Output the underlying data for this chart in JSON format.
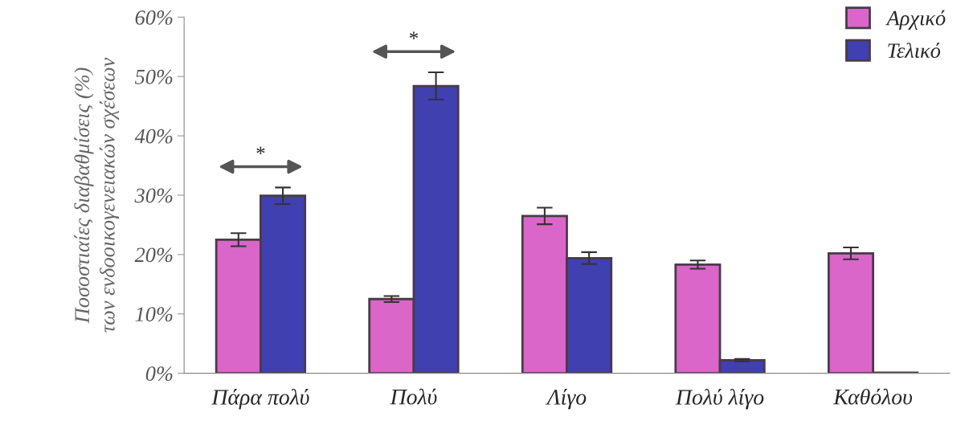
{
  "chart_data": {
    "type": "bar",
    "ylabel": "Ποσοστιαίες διαβαθμίσεις (%)\nτων ενδοοικογενειακών σχέσεων",
    "categories": [
      "Πάρα πολύ",
      "Πολύ",
      "Λίγο",
      "Πολύ λίγο",
      "Καθόλου"
    ],
    "series": [
      {
        "name": "Αρχικό",
        "color": "#d966c8",
        "values": [
          22.5,
          12.5,
          26.5,
          18.3,
          20.2
        ],
        "errors": [
          1.1,
          0.5,
          1.4,
          0.7,
          1.0
        ]
      },
      {
        "name": "Τελικό",
        "color": "#4040b0",
        "values": [
          29.9,
          48.4,
          19.4,
          2.2,
          0.1
        ],
        "errors": [
          1.4,
          2.3,
          1.0,
          0.2,
          null
        ]
      }
    ],
    "ylim": [
      0,
      60
    ],
    "yticks": [
      {
        "value": 0,
        "label": "0%"
      },
      {
        "value": 10,
        "label": "10%"
      },
      {
        "value": 20,
        "label": "20%"
      },
      {
        "value": 30,
        "label": "30%"
      },
      {
        "value": 40,
        "label": "40%"
      },
      {
        "value": 50,
        "label": "50%"
      },
      {
        "value": 60,
        "label": "60%"
      }
    ],
    "annotations": [
      "*",
      "*"
    ],
    "legend": "top right",
    "grid": false
  }
}
